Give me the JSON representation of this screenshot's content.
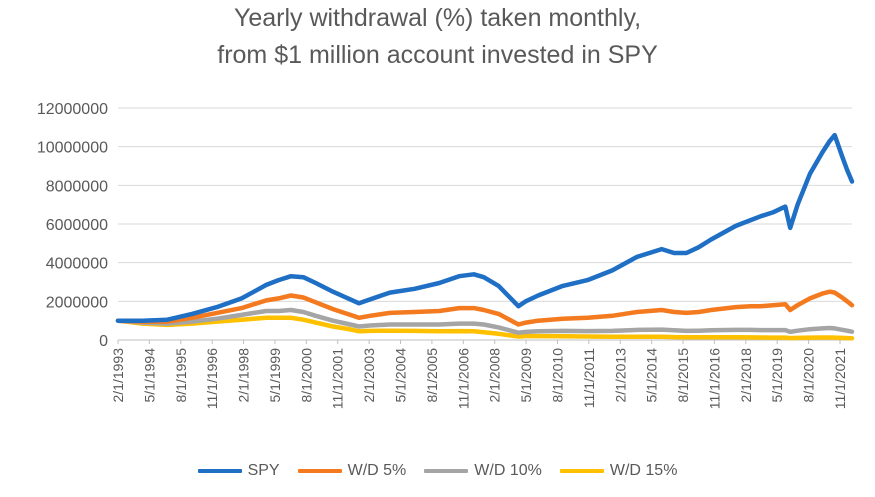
{
  "chart_data": {
    "type": "line",
    "title": "Yearly withdrawal (%) taken monthly,",
    "subtitle": "from $1 million account invested in SPY",
    "xlabel": "",
    "ylabel": "",
    "ylim": [
      0,
      12000000
    ],
    "y_ticks": [
      "0",
      "2000000",
      "4000000",
      "6000000",
      "8000000",
      "10000000",
      "12000000"
    ],
    "x_ticks": [
      "2/1/1993",
      "5/1/1994",
      "8/1/1995",
      "11/1/1996",
      "2/1/1998",
      "5/1/1999",
      "8/1/2000",
      "11/1/2001",
      "2/1/2003",
      "5/1/2004",
      "8/1/2005",
      "11/1/2006",
      "2/1/2008",
      "5/1/2009",
      "8/1/2010",
      "11/1/2011",
      "2/1/2013",
      "5/1/2014",
      "8/1/2015",
      "11/1/2016",
      "2/1/2018",
      "5/1/2019",
      "8/1/2020",
      "11/1/2021"
    ],
    "x": [
      1993.0,
      1994.0,
      1995.0,
      1996.0,
      1997.0,
      1998.0,
      1998.5,
      1999.0,
      1999.5,
      2000.0,
      2000.5,
      2001.0,
      2001.7,
      2002.4,
      2002.75,
      2003.2,
      2004.0,
      2005.0,
      2006.0,
      2006.8,
      2007.4,
      2007.8,
      2008.4,
      2009.2,
      2009.5,
      2010.0,
      2011.0,
      2012.0,
      2013.0,
      2014.0,
      2015.0,
      2015.5,
      2016.0,
      2016.5,
      2017.0,
      2018.0,
      2018.6,
      2019.0,
      2019.5,
      2020.0,
      2020.2,
      2020.5,
      2021.0,
      2021.5,
      2021.8,
      2022.0,
      2022.3,
      2022.5,
      2022.7
    ],
    "series": [
      {
        "name": "SPY",
        "color": "#1F6FC5",
        "values": [
          1000000,
          1000000,
          1050000,
          1350000,
          1700000,
          2150000,
          2500000,
          2850000,
          3100000,
          3300000,
          3250000,
          2950000,
          2500000,
          2100000,
          1900000,
          2100000,
          2450000,
          2650000,
          2950000,
          3300000,
          3400000,
          3250000,
          2800000,
          1750000,
          2000000,
          2300000,
          2800000,
          3100000,
          3600000,
          4300000,
          4700000,
          4500000,
          4500000,
          4800000,
          5200000,
          5900000,
          6200000,
          6400000,
          6600000,
          6900000,
          5800000,
          7000000,
          8600000,
          9700000,
          10300000,
          10600000,
          9500000,
          8800000,
          8200000
        ]
      },
      {
        "name": "W/D 5%",
        "color": "#F47A20",
        "values": [
          1000000,
          950000,
          950000,
          1150000,
          1400000,
          1650000,
          1850000,
          2050000,
          2150000,
          2300000,
          2200000,
          1950000,
          1600000,
          1300000,
          1150000,
          1250000,
          1400000,
          1450000,
          1500000,
          1650000,
          1650000,
          1550000,
          1350000,
          800000,
          900000,
          1000000,
          1100000,
          1150000,
          1250000,
          1450000,
          1550000,
          1450000,
          1400000,
          1450000,
          1550000,
          1700000,
          1750000,
          1750000,
          1800000,
          1850000,
          1550000,
          1800000,
          2150000,
          2400000,
          2500000,
          2450000,
          2200000,
          2000000,
          1800000
        ]
      },
      {
        "name": "W/D 10%",
        "color": "#A5A5A5",
        "values": [
          1000000,
          900000,
          850000,
          950000,
          1100000,
          1300000,
          1400000,
          1500000,
          1500000,
          1550000,
          1450000,
          1250000,
          1000000,
          800000,
          700000,
          750000,
          800000,
          800000,
          800000,
          850000,
          850000,
          800000,
          650000,
          380000,
          420000,
          450000,
          470000,
          460000,
          470000,
          520000,
          540000,
          500000,
          470000,
          480000,
          500000,
          520000,
          520000,
          510000,
          510000,
          510000,
          420000,
          480000,
          560000,
          600000,
          620000,
          600000,
          530000,
          480000,
          430000
        ]
      },
      {
        "name": "W/D 15%",
        "color": "#FFC000",
        "values": [
          1000000,
          850000,
          780000,
          850000,
          950000,
          1050000,
          1100000,
          1150000,
          1150000,
          1150000,
          1050000,
          900000,
          700000,
          550000,
          450000,
          470000,
          480000,
          470000,
          450000,
          460000,
          450000,
          400000,
          320000,
          180000,
          200000,
          200000,
          190000,
          180000,
          170000,
          170000,
          165000,
          150000,
          140000,
          140000,
          140000,
          140000,
          135000,
          130000,
          125000,
          125000,
          100000,
          110000,
          125000,
          130000,
          130000,
          125000,
          110000,
          100000,
          90000
        ]
      }
    ],
    "grid": true,
    "legend": "bottom"
  }
}
